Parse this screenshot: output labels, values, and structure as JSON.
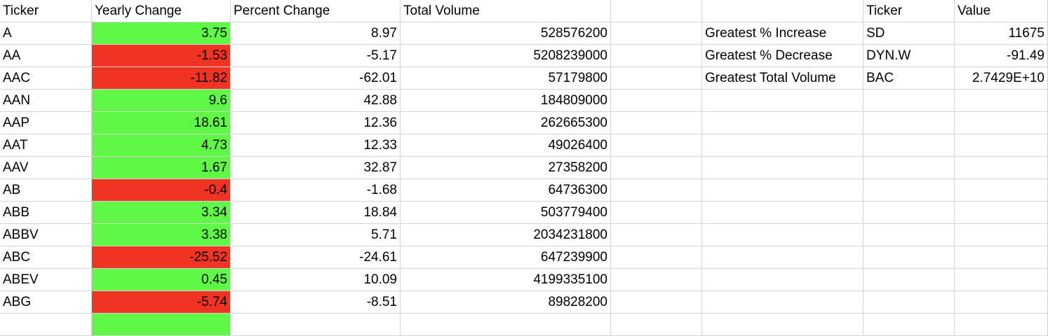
{
  "colors": {
    "positive_fill": "#5ff847",
    "negative_fill": "#f03323",
    "gridline": "#d4d4d4"
  },
  "headers": {
    "ticker": "Ticker",
    "yearly_change": "Yearly Change",
    "percent_change": "Percent Change",
    "total_volume": "Total Volume",
    "summary_ticker": "Ticker",
    "summary_value": "Value"
  },
  "rows": [
    {
      "ticker": "A",
      "yearly_change": "3.75",
      "percent_change": "8.97",
      "total_volume": "528576200",
      "status": "positive"
    },
    {
      "ticker": "AA",
      "yearly_change": "-1.53",
      "percent_change": "-5.17",
      "total_volume": "5208239000",
      "status": "negative"
    },
    {
      "ticker": "AAC",
      "yearly_change": "-11.82",
      "percent_change": "-62.01",
      "total_volume": "57179800",
      "status": "negative"
    },
    {
      "ticker": "AAN",
      "yearly_change": "9.6",
      "percent_change": "42.88",
      "total_volume": "184809000",
      "status": "positive"
    },
    {
      "ticker": "AAP",
      "yearly_change": "18.61",
      "percent_change": "12.36",
      "total_volume": "262665300",
      "status": "positive"
    },
    {
      "ticker": "AAT",
      "yearly_change": "4.73",
      "percent_change": "12.33",
      "total_volume": "49026400",
      "status": "positive"
    },
    {
      "ticker": "AAV",
      "yearly_change": "1.67",
      "percent_change": "32.87",
      "total_volume": "27358200",
      "status": "positive"
    },
    {
      "ticker": "AB",
      "yearly_change": "-0.4",
      "percent_change": "-1.68",
      "total_volume": "64736300",
      "status": "negative"
    },
    {
      "ticker": "ABB",
      "yearly_change": "3.34",
      "percent_change": "18.84",
      "total_volume": "503779400",
      "status": "positive"
    },
    {
      "ticker": "ABBV",
      "yearly_change": "3.38",
      "percent_change": "5.71",
      "total_volume": "2034231800",
      "status": "positive"
    },
    {
      "ticker": "ABC",
      "yearly_change": "-25.52",
      "percent_change": "-24.61",
      "total_volume": "647239900",
      "status": "negative"
    },
    {
      "ticker": "ABEV",
      "yearly_change": "0.45",
      "percent_change": "10.09",
      "total_volume": "4199335100",
      "status": "positive"
    },
    {
      "ticker": "ABG",
      "yearly_change": "-5.74",
      "percent_change": "-8.51",
      "total_volume": "89828200",
      "status": "negative"
    }
  ],
  "summary": [
    {
      "label": "Greatest % Increase",
      "ticker": "SD",
      "value": "11675"
    },
    {
      "label": "Greatest % Decrease",
      "ticker": "DYN.W",
      "value": "-91.49"
    },
    {
      "label": "Greatest Total Volume",
      "ticker": "BAC",
      "value": "2.7429E+10"
    }
  ]
}
